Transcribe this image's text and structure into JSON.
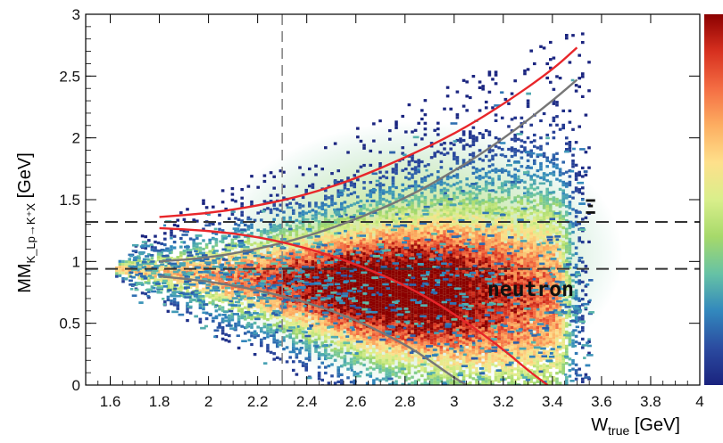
{
  "chart_data": {
    "type": "heatmap",
    "description_free": true,
    "x": {
      "label": "W",
      "label_subscript": "true",
      "label_unit": " [GeV]",
      "range": [
        1.5,
        4.0
      ],
      "ticks": [
        "1.6",
        "1.8",
        "2",
        "2.2",
        "2.4",
        "2.6",
        "2.8",
        "3",
        "3.2",
        "3.4",
        "3.6",
        "3.8",
        "4"
      ],
      "tick_values": [
        1.6,
        1.8,
        2.0,
        2.2,
        2.4,
        2.6,
        2.8,
        3.0,
        3.2,
        3.4,
        3.6,
        3.8,
        4.0
      ]
    },
    "y": {
      "label_main": "MM",
      "label_subscript": "K_Lp→K⁺X",
      "label_unit": " [GeV]",
      "range": [
        0,
        3
      ],
      "ticks": [
        "0",
        "0.5",
        "1",
        "1.5",
        "2",
        "2.5",
        "3"
      ],
      "tick_values": [
        0,
        0.5,
        1.0,
        1.5,
        2.0,
        2.5,
        3.0
      ]
    },
    "colorbar_colors": [
      "#8b0000",
      "#d7301f",
      "#f46d43",
      "#fdae61",
      "#fee08b",
      "#d9ef8b",
      "#a6d96a",
      "#66c2a5",
      "#3288bd",
      "#2b4ba0",
      "#1a237e"
    ],
    "density_band": {
      "x_start": 1.62,
      "x_end": 3.55,
      "center_values": [
        0.95,
        0.93,
        0.9,
        0.87,
        0.84,
        0.8,
        0.78,
        0.76,
        0.74,
        0.72
      ],
      "x_samples": [
        1.62,
        1.8,
        2.0,
        2.2,
        2.4,
        2.6,
        2.8,
        3.0,
        3.2,
        3.5
      ]
    },
    "vertical_dashed_line": {
      "x": 2.3,
      "color": "#888888"
    },
    "horizontal_dashed_lines": [
      {
        "y": 1.32,
        "color": "#333333",
        "label": "Ξ"
      },
      {
        "y": 0.94,
        "color": "#333333",
        "label": "neutron"
      }
    ],
    "curves": [
      {
        "color": "#e8262a",
        "x": [
          1.8,
          2.0,
          2.2,
          2.4,
          2.6,
          2.8,
          3.0,
          3.2,
          3.4,
          3.5
        ],
        "y": [
          1.36,
          1.39,
          1.45,
          1.54,
          1.67,
          1.84,
          2.03,
          2.27,
          2.55,
          2.73
        ]
      },
      {
        "color": "#777777",
        "x": [
          1.8,
          2.0,
          2.2,
          2.4,
          2.6,
          2.8,
          3.0,
          3.2,
          3.4,
          3.5
        ],
        "y": [
          1.0,
          1.03,
          1.1,
          1.2,
          1.34,
          1.51,
          1.73,
          1.99,
          2.3,
          2.47
        ]
      },
      {
        "color": "#e8262a",
        "x": [
          1.8,
          2.0,
          2.2,
          2.4,
          2.6,
          2.8,
          3.0,
          3.2,
          3.3,
          3.38
        ],
        "y": [
          1.27,
          1.25,
          1.2,
          1.11,
          0.98,
          0.81,
          0.58,
          0.29,
          0.12,
          0.0
        ]
      },
      {
        "color": "#777777",
        "x": [
          1.8,
          2.0,
          2.2,
          2.4,
          2.6,
          2.8,
          2.9,
          3.0,
          3.05
        ],
        "y": [
          0.88,
          0.84,
          0.77,
          0.67,
          0.53,
          0.33,
          0.2,
          0.06,
          0.0
        ]
      }
    ]
  }
}
